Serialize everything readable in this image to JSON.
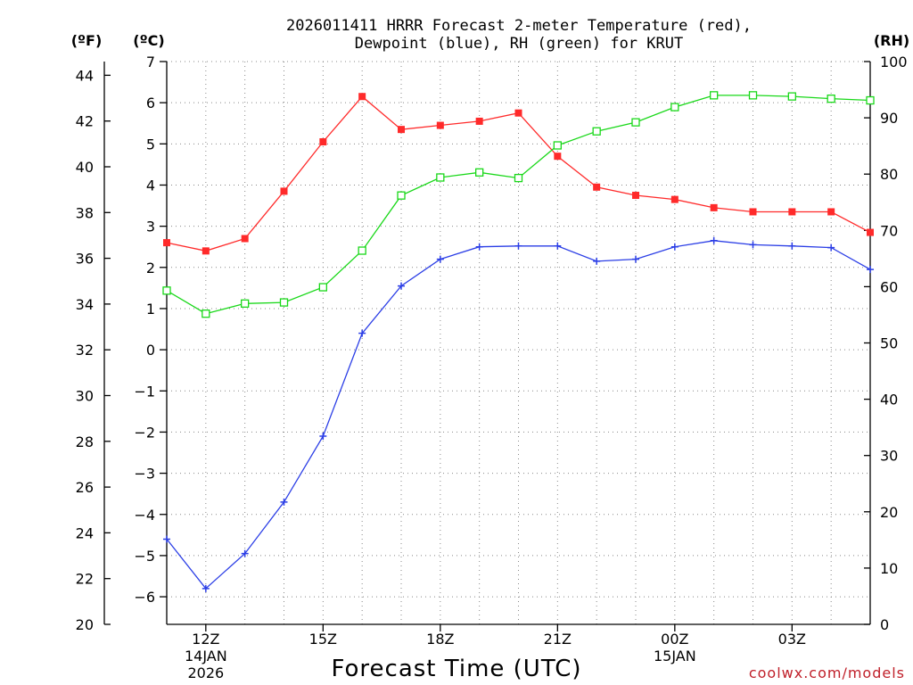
{
  "title_line1": "2026011411 HRRR Forecast 2-meter Temperature (red),",
  "title_line2": "Dewpoint (blue), RH (green) for KRUT",
  "credit": "coolwx.com/models",
  "colors": {
    "temperature": "#ff2a2a",
    "dewpoint": "#2b3ee6",
    "rh": "#19d819"
  },
  "chart_data": {
    "type": "line",
    "title": "2026011411 HRRR Forecast 2-meter Temperature (red), Dewpoint (blue), RH (green) for KRUT",
    "xlabel": "Forecast Time (UTC)",
    "x_hours_since_11Z": [
      0,
      1,
      2,
      3,
      4,
      5,
      6,
      7,
      8,
      9,
      10,
      11,
      12,
      13,
      14,
      15,
      16,
      17,
      18
    ],
    "xlim": [
      0,
      18
    ],
    "x_ticks": [
      {
        "hour": 1,
        "label": "12Z",
        "sub1": "14JAN",
        "sub2": "2026"
      },
      {
        "hour": 4,
        "label": "15Z",
        "sub1": "",
        "sub2": ""
      },
      {
        "hour": 7,
        "label": "18Z",
        "sub1": "",
        "sub2": ""
      },
      {
        "hour": 10,
        "label": "21Z",
        "sub1": "",
        "sub2": ""
      },
      {
        "hour": 13,
        "label": "00Z",
        "sub1": "15JAN",
        "sub2": ""
      },
      {
        "hour": 16,
        "label": "03Z",
        "sub1": "",
        "sub2": ""
      }
    ],
    "left_axis_f": {
      "label": "(ºF)",
      "ticks": [
        "44",
        "42",
        "40",
        "38",
        "36",
        "34",
        "32",
        "30",
        "28",
        "26",
        "24",
        "22",
        "20"
      ],
      "range": [
        20,
        44.6
      ]
    },
    "left_axis_c": {
      "label": "(ºC)",
      "ticks": [
        "7",
        "6",
        "5",
        "4",
        "3",
        "2",
        "1",
        "0",
        "−1",
        "−2",
        "−3",
        "−4",
        "−5",
        "−6"
      ],
      "range": [
        -6.67,
        7
      ]
    },
    "right_axis_rh": {
      "label": "(RH)",
      "ticks": [
        "100",
        "90",
        "80",
        "70",
        "60",
        "50",
        "40",
        "30",
        "20",
        "10",
        "0"
      ],
      "range": [
        0,
        100
      ]
    },
    "series": [
      {
        "name": "2-meter Temperature",
        "units": "C",
        "axis": "c",
        "marker": "filled-square",
        "values": [
          2.6,
          2.4,
          2.7,
          3.85,
          5.05,
          6.15,
          5.35,
          5.45,
          5.55,
          5.75,
          4.7,
          3.95,
          3.75,
          3.65,
          3.45,
          3.35,
          3.35,
          3.35,
          2.85
        ]
      },
      {
        "name": "Dewpoint",
        "units": "C",
        "axis": "c",
        "marker": "plus",
        "values": [
          -4.6,
          -5.8,
          -4.95,
          -3.7,
          -2.1,
          0.4,
          1.55,
          2.2,
          2.5,
          2.52,
          2.52,
          2.15,
          2.2,
          2.5,
          2.65,
          2.55,
          2.52,
          2.48,
          1.95
        ]
      },
      {
        "name": "RH",
        "units": "%",
        "axis": "rh",
        "marker": "open-square",
        "values": [
          59.3,
          55.2,
          57.0,
          57.2,
          59.9,
          66.4,
          76.2,
          79.4,
          80.3,
          79.3,
          85.1,
          87.6,
          89.2,
          91.9,
          94.0,
          94.0,
          93.8,
          93.4,
          93.1
        ]
      }
    ]
  }
}
